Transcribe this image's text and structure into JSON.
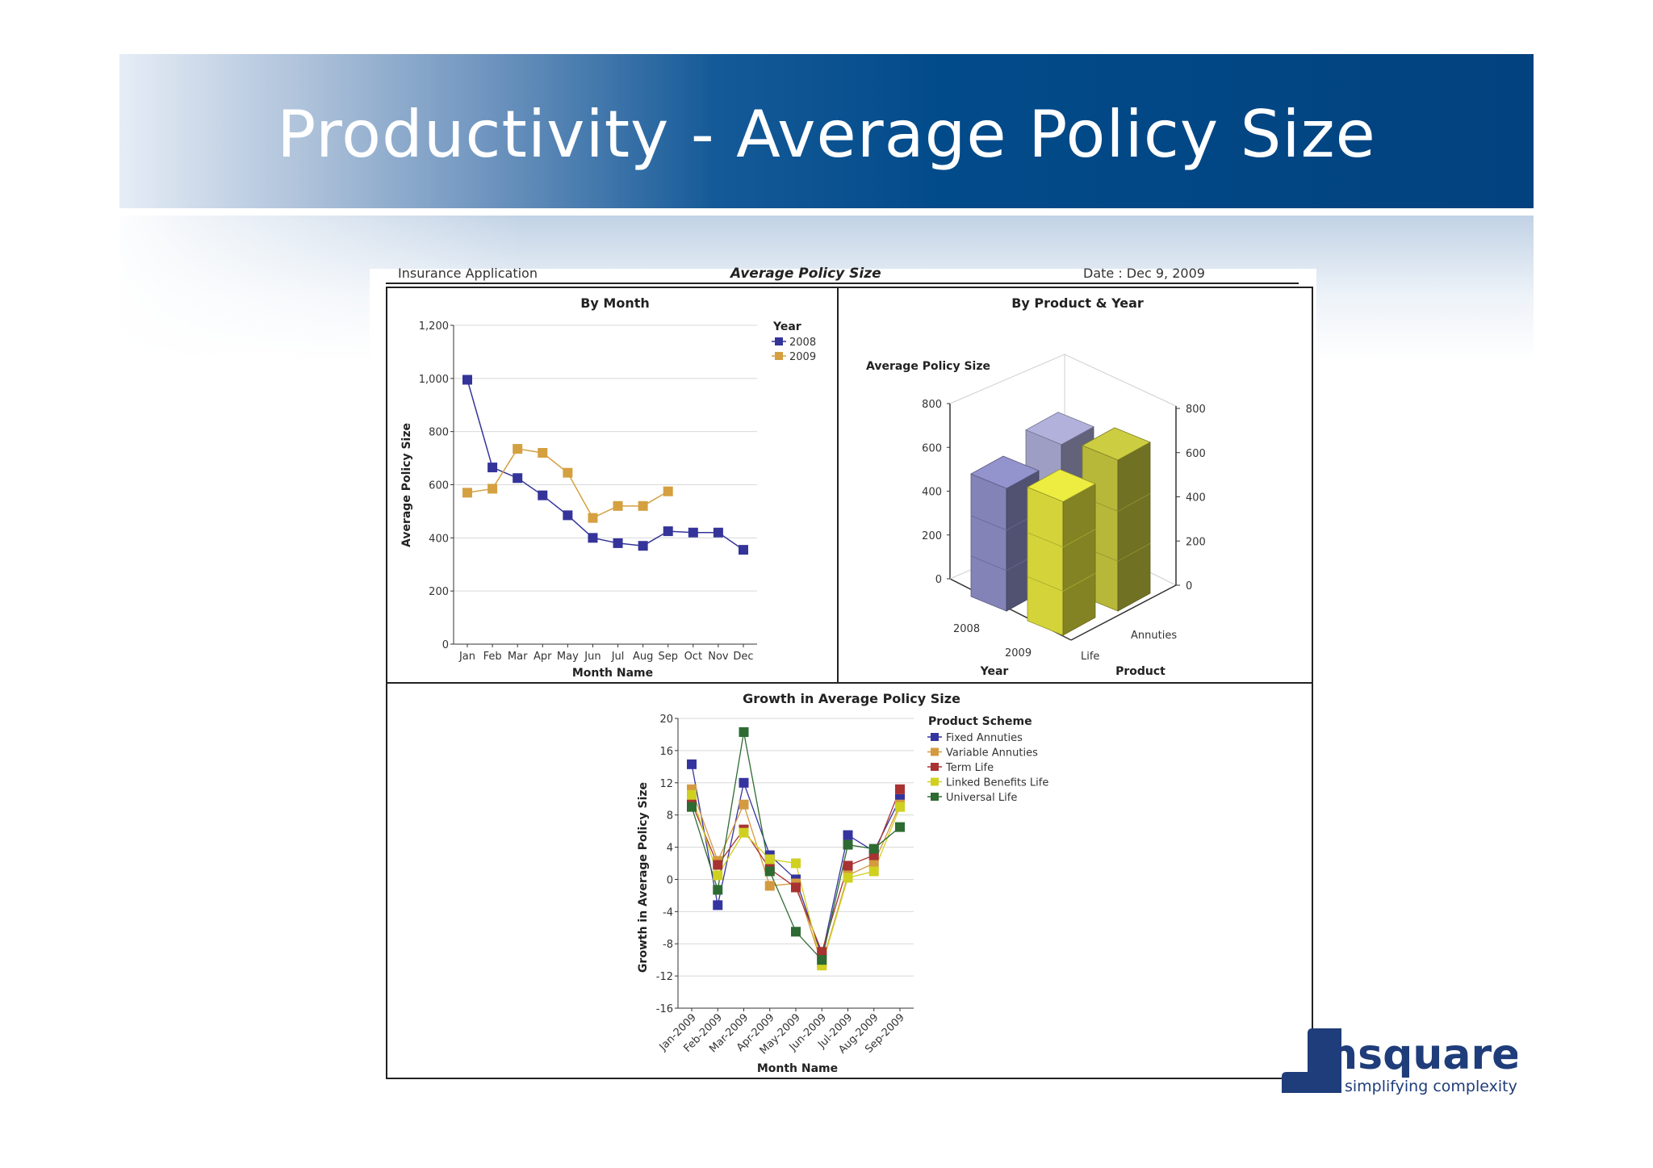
{
  "slide": {
    "title": "Productivity - Average Policy Size"
  },
  "report_header": {
    "app": "Insurance Application",
    "title": "Average Policy Size",
    "date": "Date : Dec 9, 2009"
  },
  "logo": {
    "brand": "msquare",
    "tagline": "simplifying complexity",
    "color": "#1f3d7a"
  },
  "chart_data": [
    {
      "type": "line",
      "title": "By Month",
      "xlabel": "Month Name",
      "ylabel": "Average Policy Size",
      "categories": [
        "Jan",
        "Feb",
        "Mar",
        "Apr",
        "May",
        "Jun",
        "Jul",
        "Aug",
        "Sep",
        "Oct",
        "Nov",
        "Dec"
      ],
      "ylim": [
        0,
        1200
      ],
      "yticks": [
        0,
        200,
        400,
        600,
        800,
        1000,
        1200
      ],
      "ytick_labels": [
        "0",
        "200",
        "400",
        "600",
        "800",
        "1,000",
        "1,200"
      ],
      "grid": true,
      "legend": {
        "title": "Year",
        "position": "right"
      },
      "series": [
        {
          "name": "2008",
          "color": "#34349a",
          "values": [
            995,
            665,
            625,
            560,
            485,
            400,
            380,
            370,
            425,
            420,
            420,
            355
          ]
        },
        {
          "name": "2009",
          "color": "#d4a040",
          "values": [
            570,
            585,
            735,
            720,
            645,
            475,
            520,
            520,
            575,
            null,
            null,
            null
          ]
        }
      ]
    },
    {
      "type": "bar",
      "style": "3d-stacked",
      "title": "By Product & Year",
      "zlabel": "Average Policy Size",
      "xlabel": "Year",
      "ylabel": "Product",
      "years": [
        "2008",
        "2009"
      ],
      "products": [
        "Life",
        "Annuties"
      ],
      "zlim": [
        0,
        800
      ],
      "zticks": [
        0,
        200,
        400,
        600,
        800
      ],
      "series": [
        {
          "name": "Life",
          "year": "2008",
          "value": 560,
          "color": "#8383b8"
        },
        {
          "name": "Life",
          "year": "2009",
          "value": 610,
          "color": "#d4d43a"
        },
        {
          "name": "Annuties",
          "year": "2008",
          "value": 650,
          "color": "#9e9ec4"
        },
        {
          "name": "Annuties",
          "year": "2009",
          "value": 690,
          "color": "#b7b73a"
        }
      ]
    },
    {
      "type": "line",
      "title": "Growth in Average Policy Size",
      "xlabel": "Month Name",
      "ylabel": "Growth in Average Policy Size",
      "categories": [
        "Jan-2009",
        "Feb-2009",
        "Mar-2009",
        "Apr-2009",
        "May-2009",
        "Jun-2009",
        "Jul-2009",
        "Aug-2009",
        "Sep-2009"
      ],
      "ylim": [
        -16,
        20
      ],
      "yticks": [
        -16,
        -12,
        -8,
        -4,
        0,
        4,
        8,
        12,
        16,
        20
      ],
      "grid": true,
      "legend": {
        "title": "Product Scheme",
        "position": "right"
      },
      "series": [
        {
          "name": "Fixed Annuties",
          "color": "#3434a0",
          "values": [
            14.3,
            -3.2,
            12.0,
            3.0,
            0.0,
            -9.5,
            5.5,
            3.5,
            10.0
          ]
        },
        {
          "name": "Variable Annuties",
          "color": "#d49a40",
          "values": [
            11.2,
            2.3,
            9.3,
            -0.8,
            -0.5,
            -10.5,
            0.5,
            2.0,
            9.3
          ]
        },
        {
          "name": "Term Life",
          "color": "#a83232",
          "values": [
            9.5,
            1.8,
            6.2,
            1.3,
            -1.0,
            -9.0,
            1.7,
            3.0,
            11.2
          ]
        },
        {
          "name": "Linked Benefits Life",
          "color": "#d0d020",
          "values": [
            10.5,
            0.5,
            5.8,
            2.5,
            2.0,
            -10.7,
            0.2,
            1.0,
            9.0
          ]
        },
        {
          "name": "Universal Life",
          "color": "#2e6b32",
          "values": [
            9.0,
            -1.3,
            18.3,
            1.0,
            -6.5,
            -10.0,
            4.3,
            3.8,
            6.5
          ]
        }
      ]
    }
  ]
}
